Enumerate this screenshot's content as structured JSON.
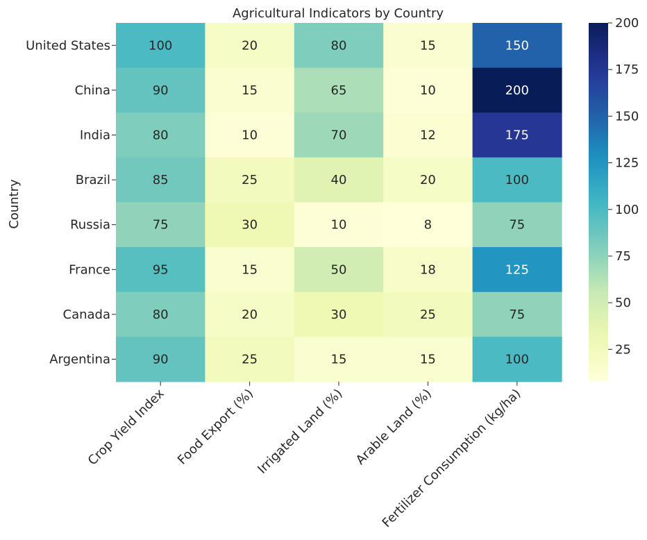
{
  "chart_data": {
    "type": "heatmap",
    "title": "Agricultural Indicators by Country",
    "ylabel": "Country",
    "xlabel": "",
    "rows": [
      "United States",
      "China",
      "India",
      "Brazil",
      "Russia",
      "France",
      "Canada",
      "Argentina"
    ],
    "columns": [
      "Crop Yield Index",
      "Food Export (%)",
      "Irrigated Land (%)",
      "Arable Land (%)",
      "Fertilizer Consumption (kg/ha)"
    ],
    "values": [
      [
        100,
        20,
        80,
        15,
        150
      ],
      [
        90,
        15,
        65,
        10,
        200
      ],
      [
        80,
        10,
        70,
        12,
        175
      ],
      [
        85,
        25,
        40,
        20,
        100
      ],
      [
        75,
        30,
        10,
        8,
        75
      ],
      [
        95,
        15,
        50,
        18,
        125
      ],
      [
        80,
        20,
        30,
        25,
        75
      ],
      [
        90,
        25,
        15,
        15,
        100
      ]
    ],
    "colormap": "YlGnBu",
    "vmin": 8,
    "vmax": 200,
    "colorbar_ticks": [
      25,
      50,
      75,
      100,
      125,
      150,
      175,
      200
    ],
    "annotations": true,
    "grid": false
  }
}
